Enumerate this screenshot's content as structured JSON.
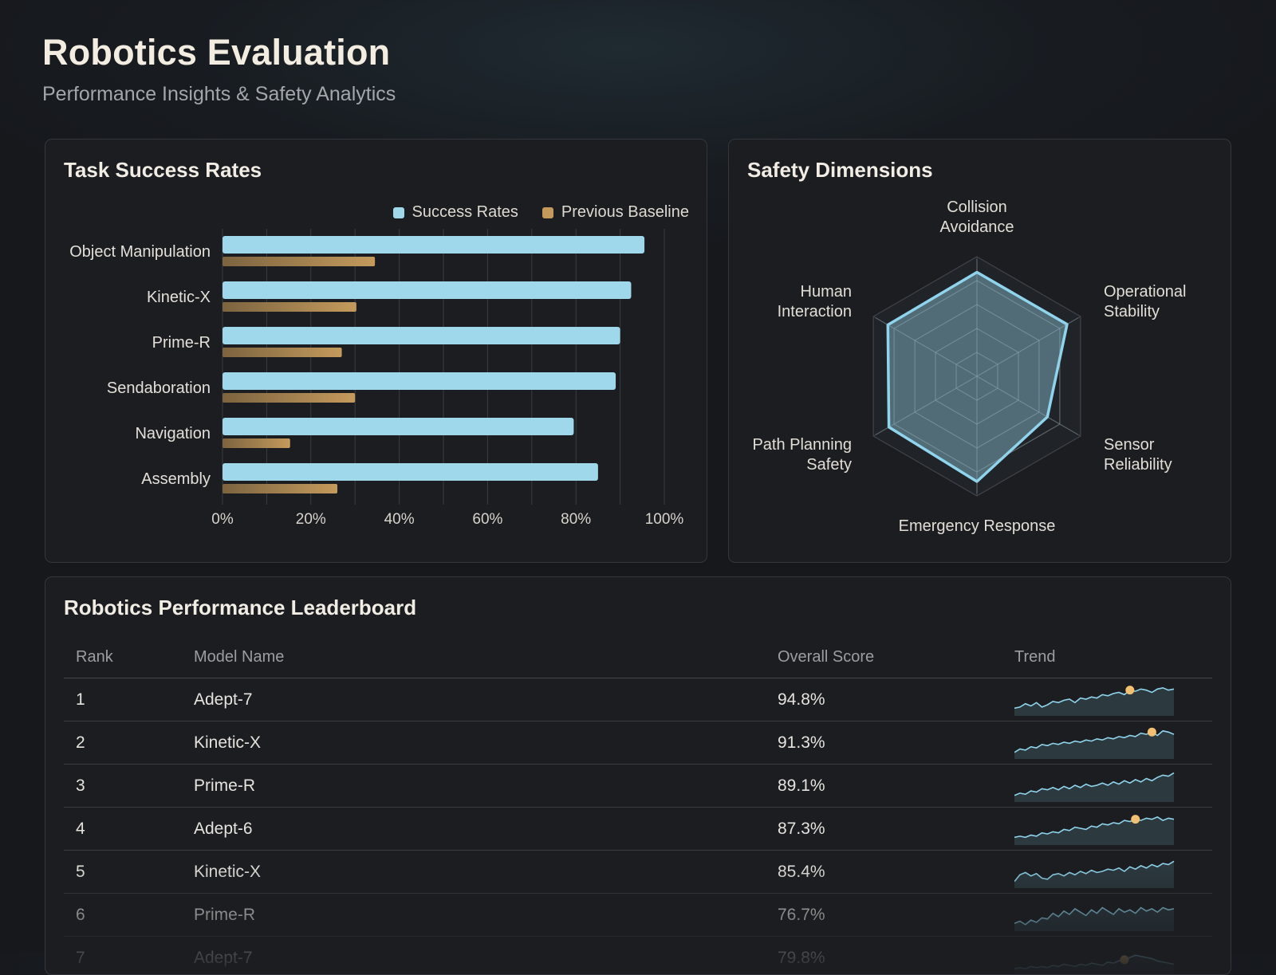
{
  "header": {
    "title": "Robotics Evaluation",
    "subtitle": "Performance Insights & Safety Analytics"
  },
  "colors": {
    "success": "#9fd8ea",
    "baseline": "#c49a5c",
    "radar_stroke": "#8fd4ec",
    "radar_fill": "#6f99a6",
    "accent_dot": "#f2c070",
    "card_bg": "#1b1d21"
  },
  "bar_card": {
    "title": "Task Success Rates",
    "legend": [
      {
        "label": "Success Rates",
        "color": "#9fd8ea"
      },
      {
        "label": "Previous Baseline",
        "color": "#c49a5c"
      }
    ]
  },
  "chart_data": [
    {
      "type": "bar",
      "orientation": "horizontal",
      "title": "Task Success Rates",
      "categories": [
        "Object Manipulation",
        "Kinetic-X",
        "Prime-R",
        "Sendaboration",
        "Navigation",
        "Assembly"
      ],
      "series": [
        {
          "name": "Success Rates",
          "values": [
            95.5,
            92.5,
            90,
            89,
            79.5,
            85
          ]
        },
        {
          "name": "Previous Baseline",
          "values": [
            34.5,
            30.3,
            27,
            30,
            15.3,
            26
          ]
        }
      ],
      "xlim": [
        0,
        100
      ],
      "xticks": [
        "0%",
        "20%",
        "40%",
        "60%",
        "80%",
        "100%"
      ],
      "grid": "vertical",
      "legend_position": "top-right"
    },
    {
      "type": "radar",
      "title": "Safety Dimensions",
      "axes": [
        "Collision Avoidance",
        "Operational Stability",
        "Sensor Reliability",
        "Emergency Response",
        "Path Planning Safety",
        "Human Interaction"
      ],
      "axis_label_lines": [
        [
          "Collision",
          "Avoidance"
        ],
        [
          "Operational",
          "Stability"
        ],
        [
          "Sensor",
          "Reliability"
        ],
        [
          "Emergency Response"
        ],
        [
          "Path Planning",
          "Safety"
        ],
        [
          "Human",
          "Interaction"
        ]
      ],
      "values": [
        87,
        87,
        68,
        88,
        85,
        86
      ],
      "range": [
        0,
        100
      ],
      "rings": 5
    }
  ],
  "leaderboard": {
    "title": "Robotics Performance Leaderboard",
    "columns": [
      "Rank",
      "Model Name",
      "Overall Score",
      "Trend"
    ],
    "rows": [
      {
        "rank": "1",
        "model": "Adept-7",
        "score": "94.8%",
        "trend": [
          4,
          5,
          8,
          6,
          9,
          5,
          7,
          10,
          9,
          11,
          12,
          9,
          13,
          12,
          14,
          13,
          16,
          15,
          17,
          18,
          16,
          20,
          19,
          21,
          20,
          18,
          21,
          22,
          20,
          21
        ],
        "dot": 21
      },
      {
        "rank": "2",
        "model": "Kinetic-X",
        "score": "91.3%",
        "trend": [
          3,
          6,
          5,
          8,
          7,
          10,
          9,
          11,
          10,
          12,
          11,
          13,
          12,
          14,
          13,
          15,
          14,
          16,
          15,
          17,
          16,
          18,
          17,
          20,
          19,
          21,
          18,
          22,
          21,
          19
        ],
        "dot": 25
      },
      {
        "rank": "3",
        "model": "Prime-R",
        "score": "89.1%",
        "trend": [
          3,
          5,
          4,
          7,
          6,
          9,
          8,
          10,
          8,
          11,
          9,
          12,
          10,
          13,
          11,
          12,
          14,
          12,
          15,
          13,
          16,
          14,
          17,
          15,
          18,
          16,
          19,
          21,
          20,
          23
        ],
        "dot": null
      },
      {
        "rank": "4",
        "model": "Adept-6",
        "score": "87.3%",
        "trend": [
          4,
          5,
          4,
          6,
          5,
          8,
          7,
          9,
          8,
          11,
          10,
          13,
          12,
          11,
          14,
          13,
          16,
          15,
          17,
          16,
          19,
          18,
          20,
          19,
          21,
          20,
          22,
          19,
          21,
          20
        ],
        "dot": 22
      },
      {
        "rank": "5",
        "model": "Kinetic-X",
        "score": "85.4%",
        "trend": [
          3,
          9,
          11,
          8,
          10,
          6,
          5,
          9,
          10,
          8,
          11,
          9,
          12,
          10,
          13,
          11,
          12,
          14,
          13,
          15,
          12,
          16,
          14,
          17,
          15,
          18,
          16,
          19,
          18,
          21
        ],
        "dot": null
      },
      {
        "rank": "6",
        "model": "Prime-R",
        "score": "76.7%",
        "trend": [
          4,
          6,
          3,
          7,
          5,
          9,
          8,
          13,
          10,
          15,
          12,
          17,
          14,
          11,
          16,
          13,
          18,
          15,
          12,
          17,
          14,
          16,
          13,
          18,
          15,
          17,
          14,
          18,
          16,
          17
        ],
        "dot": null
      },
      {
        "rank": "7",
        "model": "Adept-7",
        "score": "79.8%",
        "trend": [
          2,
          3,
          2,
          4,
          3,
          4,
          3,
          5,
          4,
          6,
          5,
          4,
          6,
          5,
          7,
          6,
          5,
          8,
          7,
          9,
          10,
          12,
          14,
          13,
          12,
          11,
          9,
          8,
          7,
          6
        ],
        "dot": 20
      }
    ]
  }
}
